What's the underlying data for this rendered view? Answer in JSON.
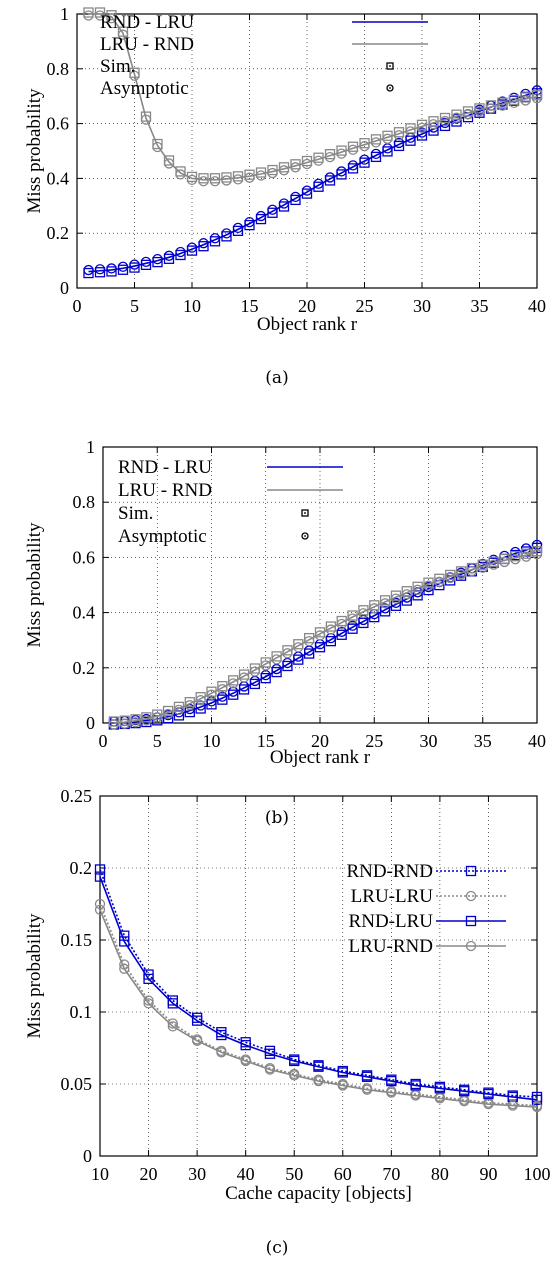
{
  "chart_data": [
    {
      "type": "line",
      "caption": "(a)",
      "xlabel": "Object rank r",
      "ylabel": "Miss probability",
      "xlim": [
        0,
        40
      ],
      "ylim": [
        0,
        1
      ],
      "xticks": [
        0,
        5,
        10,
        15,
        20,
        25,
        30,
        35,
        40
      ],
      "yticks": [
        0,
        0.2,
        0.4,
        0.6,
        0.8,
        1
      ],
      "ytick_labels": [
        "0",
        "0.2",
        "0.4",
        "0.6",
        "0.8",
        "1"
      ],
      "x": [
        1,
        2,
        3,
        4,
        5,
        6,
        7,
        8,
        9,
        10,
        11,
        12,
        13,
        14,
        15,
        16,
        17,
        18,
        19,
        20,
        21,
        22,
        23,
        24,
        25,
        26,
        27,
        28,
        29,
        30,
        31,
        32,
        33,
        34,
        35,
        36,
        37,
        38,
        39,
        40
      ],
      "legend_position": "top-right",
      "legend": [
        {
          "label": "RND - LRU",
          "kind": "line",
          "color": "#0000cc"
        },
        {
          "label": "LRU - RND",
          "kind": "line",
          "color": "#888888"
        },
        {
          "label": "Sim.",
          "kind": "marker",
          "marker": "square"
        },
        {
          "label": "Asymptotic",
          "kind": "marker",
          "marker": "circle"
        }
      ],
      "series": [
        {
          "name": "RND - LRU",
          "color": "#0000cc",
          "values": [
            0.06,
            0.063,
            0.066,
            0.072,
            0.08,
            0.09,
            0.1,
            0.112,
            0.126,
            0.142,
            0.158,
            0.176,
            0.194,
            0.214,
            0.235,
            0.257,
            0.28,
            0.303,
            0.327,
            0.35,
            0.375,
            0.398,
            0.42,
            0.442,
            0.463,
            0.484,
            0.504,
            0.524,
            0.543,
            0.562,
            0.58,
            0.597,
            0.613,
            0.629,
            0.645,
            0.66,
            0.675,
            0.689,
            0.703,
            0.716
          ]
        },
        {
          "name": "LRU - RND",
          "color": "#888888",
          "values": [
            1.0,
            1.0,
            0.99,
            0.93,
            0.78,
            0.62,
            0.52,
            0.46,
            0.42,
            0.4,
            0.395,
            0.395,
            0.398,
            0.402,
            0.408,
            0.416,
            0.425,
            0.435,
            0.446,
            0.458,
            0.47,
            0.483,
            0.496,
            0.51,
            0.523,
            0.537,
            0.55,
            0.563,
            0.577,
            0.59,
            0.603,
            0.615,
            0.627,
            0.639,
            0.65,
            0.661,
            0.671,
            0.681,
            0.69,
            0.698
          ]
        }
      ]
    },
    {
      "type": "line",
      "caption": "(b)",
      "xlabel": "Object rank r",
      "ylabel": "Miss probability",
      "xlim": [
        0,
        40
      ],
      "ylim": [
        0,
        1
      ],
      "xticks": [
        0,
        5,
        10,
        15,
        20,
        25,
        30,
        35,
        40
      ],
      "yticks": [
        0,
        0.2,
        0.4,
        0.6,
        0.8,
        1
      ],
      "ytick_labels": [
        "0",
        "0.2",
        "0.4",
        "0.6",
        "0.8",
        "1"
      ],
      "x": [
        1,
        2,
        3,
        4,
        5,
        6,
        7,
        8,
        9,
        10,
        11,
        12,
        13,
        14,
        15,
        16,
        17,
        18,
        19,
        20,
        21,
        22,
        23,
        24,
        25,
        26,
        27,
        28,
        29,
        30,
        31,
        32,
        33,
        34,
        35,
        36,
        37,
        38,
        39,
        40
      ],
      "legend_position": "top-left",
      "legend": [
        {
          "label": "RND - LRU",
          "kind": "line",
          "color": "#0000cc"
        },
        {
          "label": "LRU - RND",
          "kind": "line",
          "color": "#888888"
        },
        {
          "label": "Sim.",
          "kind": "marker",
          "marker": "square"
        },
        {
          "label": "Asymptotic",
          "kind": "marker",
          "marker": "circle"
        }
      ],
      "series": [
        {
          "name": "RND - LRU",
          "color": "#0000cc",
          "values": [
            0.0,
            0.002,
            0.005,
            0.009,
            0.015,
            0.023,
            0.033,
            0.045,
            0.058,
            0.073,
            0.09,
            0.108,
            0.127,
            0.147,
            0.168,
            0.19,
            0.212,
            0.235,
            0.257,
            0.28,
            0.302,
            0.325,
            0.347,
            0.368,
            0.389,
            0.41,
            0.43,
            0.449,
            0.468,
            0.487,
            0.505,
            0.522,
            0.539,
            0.555,
            0.571,
            0.586,
            0.6,
            0.614,
            0.627,
            0.64
          ]
        },
        {
          "name": "LRU - RND",
          "color": "#888888",
          "values": [
            0.0,
            0.003,
            0.008,
            0.015,
            0.025,
            0.038,
            0.053,
            0.07,
            0.088,
            0.108,
            0.128,
            0.149,
            0.17,
            0.192,
            0.214,
            0.236,
            0.258,
            0.28,
            0.302,
            0.323,
            0.344,
            0.364,
            0.384,
            0.403,
            0.421,
            0.439,
            0.456,
            0.472,
            0.488,
            0.503,
            0.517,
            0.531,
            0.544,
            0.556,
            0.568,
            0.579,
            0.589,
            0.599,
            0.608,
            0.617
          ]
        }
      ]
    },
    {
      "type": "line",
      "caption": "(c)",
      "xlabel": "Cache capacity [objects]",
      "ylabel": "Miss probability",
      "xlim": [
        10,
        100
      ],
      "ylim": [
        0,
        0.25
      ],
      "xticks": [
        10,
        20,
        30,
        40,
        50,
        60,
        70,
        80,
        90,
        100
      ],
      "yticks": [
        0,
        0.05,
        0.1,
        0.15,
        0.2,
        0.25
      ],
      "ytick_labels": [
        "0",
        "0.05",
        "0.1",
        "0.15",
        "0.2",
        "0.25"
      ],
      "x": [
        10,
        15,
        20,
        25,
        30,
        35,
        40,
        45,
        50,
        55,
        60,
        65,
        70,
        75,
        80,
        85,
        90,
        95,
        100
      ],
      "legend_position": "top-right",
      "legend": [
        {
          "label": "RND-RND",
          "kind": "line",
          "color": "#0000cc",
          "dash": "dotted",
          "marker": "square"
        },
        {
          "label": "LRU-LRU",
          "kind": "line",
          "color": "#888888",
          "dash": "dotted",
          "marker": "circle"
        },
        {
          "label": "RND-LRU",
          "kind": "line",
          "color": "#0000cc",
          "dash": "solid",
          "marker": "square"
        },
        {
          "label": "LRU-RND",
          "kind": "line",
          "color": "#888888",
          "dash": "solid",
          "marker": "circle"
        }
      ],
      "series": [
        {
          "name": "RND-RND",
          "color": "#0000cc",
          "dash": "dotted",
          "marker": "square",
          "values": [
            0.199,
            0.153,
            0.126,
            0.108,
            0.096,
            0.086,
            0.079,
            0.073,
            0.067,
            0.063,
            0.059,
            0.056,
            0.053,
            0.05,
            0.048,
            0.046,
            0.044,
            0.042,
            0.041
          ]
        },
        {
          "name": "LRU-LRU",
          "color": "#888888",
          "dash": "dotted",
          "marker": "circle",
          "values": [
            0.175,
            0.133,
            0.108,
            0.092,
            0.081,
            0.073,
            0.067,
            0.061,
            0.057,
            0.053,
            0.05,
            0.047,
            0.045,
            0.043,
            0.041,
            0.039,
            0.037,
            0.036,
            0.035
          ]
        },
        {
          "name": "RND-LRU",
          "color": "#0000cc",
          "dash": "solid",
          "marker": "square",
          "values": [
            0.194,
            0.149,
            0.123,
            0.106,
            0.094,
            0.084,
            0.077,
            0.071,
            0.066,
            0.062,
            0.058,
            0.055,
            0.052,
            0.049,
            0.047,
            0.045,
            0.043,
            0.041,
            0.039
          ]
        },
        {
          "name": "LRU-RND",
          "color": "#888888",
          "dash": "solid",
          "marker": "circle",
          "values": [
            0.171,
            0.13,
            0.106,
            0.09,
            0.08,
            0.072,
            0.066,
            0.06,
            0.056,
            0.052,
            0.049,
            0.046,
            0.044,
            0.042,
            0.04,
            0.038,
            0.036,
            0.035,
            0.034
          ]
        }
      ]
    }
  ]
}
